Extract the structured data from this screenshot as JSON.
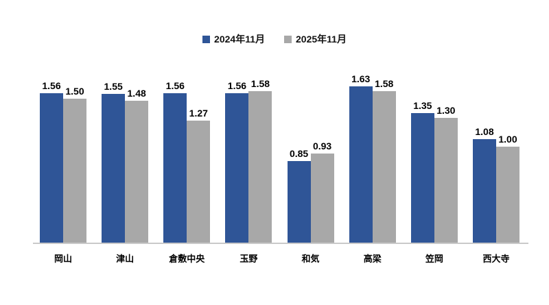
{
  "chart_data": {
    "type": "bar",
    "title": "",
    "categories": [
      "岡山",
      "津山",
      "倉敷中央",
      "玉野",
      "和気",
      "高梁",
      "笠岡",
      "西大寺"
    ],
    "series": [
      {
        "name": "2024年11月",
        "color": "#2F5597",
        "values": [
          1.56,
          1.55,
          1.56,
          1.56,
          0.85,
          1.63,
          1.35,
          1.08
        ]
      },
      {
        "name": "2025年11月",
        "color": "#A8A8A8",
        "values": [
          1.5,
          1.48,
          1.27,
          1.58,
          0.93,
          1.58,
          1.3,
          1.0
        ]
      }
    ],
    "value_labels": true,
    "decimals": 2,
    "ylim": [
      0,
      1.8
    ],
    "grid": false,
    "legend_position": "top",
    "axis_line_color": "#C9C9C9",
    "background": "#FFFFFF"
  }
}
